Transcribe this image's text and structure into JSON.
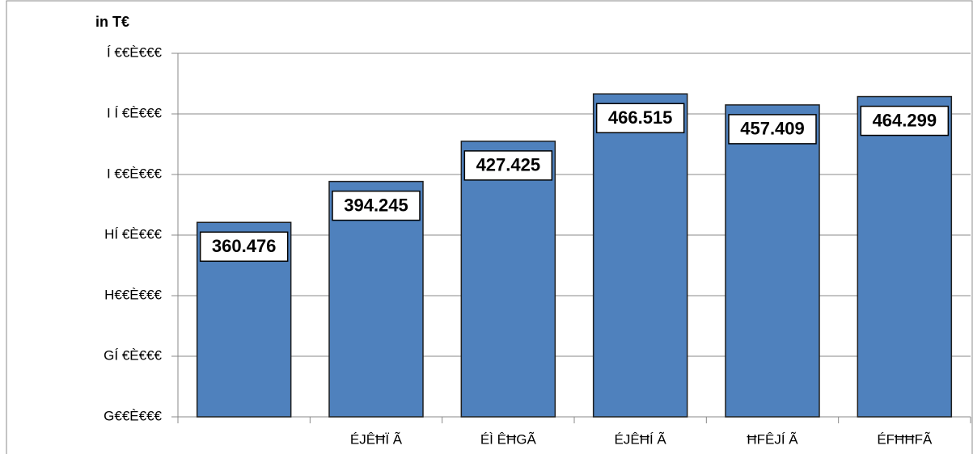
{
  "chart_data": {
    "type": "bar",
    "title": "in T€",
    "categories": [
      null,
      "ÉJÊĦÏ Ã",
      "ÉÌ ÊĦGÃ",
      "ÉJÊĦÍ Ã",
      "ĦFÊJÍ Ã",
      "ÉFĦĦFÃ"
    ],
    "values": [
      360476,
      394245,
      427425,
      466515,
      457409,
      464299
    ],
    "value_labels": [
      "360.476",
      "394.245",
      "427.425",
      "466.515",
      "457.409",
      "464.299"
    ],
    "color": "#4f81bd",
    "ylim": [
      200000,
      500000
    ],
    "yticks": [
      {
        "value": 200000,
        "label": "G€€È€€€"
      },
      {
        "value": 250000,
        "label": "GÍ €È€€€"
      },
      {
        "value": 300000,
        "label": "H€€È€€€"
      },
      {
        "value": 350000,
        "label": "HÍ €È€€€"
      },
      {
        "value": 400000,
        "label": "I €€È€€€"
      },
      {
        "value": 450000,
        "label": "I Í €È€€€"
      },
      {
        "value": 500000,
        "label": "Í €€È€€€"
      }
    ],
    "grid": true
  }
}
